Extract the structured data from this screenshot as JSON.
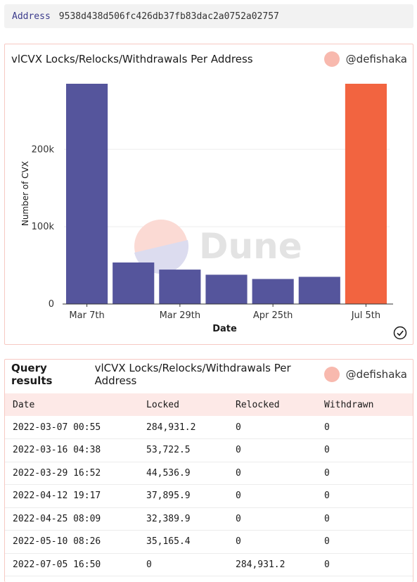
{
  "address": {
    "label": "Address",
    "value": "9538d438d506fc426db37fb83dac2a0752a02757"
  },
  "chart_card": {
    "title": "vlCVX Locks/Relocks/Withdrawals Per Address",
    "author": "@defishaka",
    "watermark": "Dune"
  },
  "chart_data": {
    "type": "bar",
    "categories": [
      "2022-03-07",
      "2022-03-16",
      "2022-03-29",
      "2022-04-12",
      "2022-04-25",
      "2022-05-10",
      "2022-07-05"
    ],
    "tick_labels": [
      "Mar 7th",
      "Mar 29th",
      "Apr 25th",
      "Jul 5th"
    ],
    "tick_positions": [
      0,
      2,
      4,
      6
    ],
    "series": [
      {
        "name": "Locked",
        "color": "#55559c",
        "values": [
          284931.2,
          53722.5,
          44536.9,
          37895.9,
          32389.9,
          35165.4,
          0
        ]
      },
      {
        "name": "Relocked",
        "color": "#f26440",
        "values": [
          0,
          0,
          0,
          0,
          0,
          0,
          284931.2
        ]
      },
      {
        "name": "Withdrawn",
        "color": "#2aa198",
        "values": [
          0,
          0,
          0,
          0,
          0,
          0,
          0
        ]
      }
    ],
    "stacked": true,
    "xlabel": "Date",
    "ylabel": "Number of CVX",
    "yticks": [
      "0",
      "100k",
      "200k"
    ],
    "ytick_values": [
      0,
      100000,
      200000
    ],
    "ylim": [
      0,
      284931.2
    ],
    "grid": true
  },
  "results_card": {
    "label": "Query results",
    "title": "vlCVX Locks/Relocks/Withdrawals Per Address",
    "author": "@defishaka",
    "columns": [
      "Date",
      "Locked",
      "Relocked",
      "Withdrawn"
    ],
    "rows": [
      [
        "2022-03-07 00:55",
        "284,931.2",
        "0",
        "0"
      ],
      [
        "2022-03-16 04:38",
        "53,722.5",
        "0",
        "0"
      ],
      [
        "2022-03-29 16:52",
        "44,536.9",
        "0",
        "0"
      ],
      [
        "2022-04-12 19:17",
        "37,895.9",
        "0",
        "0"
      ],
      [
        "2022-04-25 08:09",
        "32,389.9",
        "0",
        "0"
      ],
      [
        "2022-05-10 08:26",
        "35,165.4",
        "0",
        "0"
      ],
      [
        "2022-07-05 16:50",
        "0",
        "284,931.2",
        "0"
      ]
    ]
  }
}
